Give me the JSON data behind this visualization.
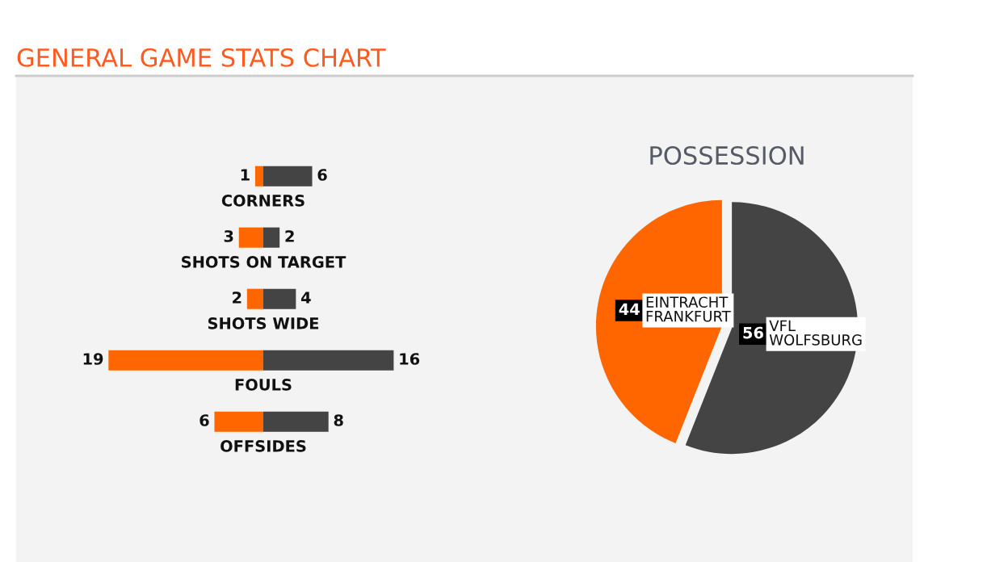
{
  "chart_data": [
    {
      "type": "bar",
      "orientation": "horizontal",
      "title": "GENERAL GAME STATS CHART",
      "categories": [
        "CORNERS",
        "SHOTS ON TARGET",
        "SHOTS WIDE",
        "FOULS",
        "OFFSIDES"
      ],
      "data_labels": true,
      "series": [
        {
          "color": "#ff6600",
          "values": [
            1,
            3,
            2,
            19,
            6
          ]
        }
      ]
    },
    {
      "type": "bar",
      "orientation": "horizontal",
      "categories": [
        null,
        null,
        null,
        null,
        null
      ],
      "data_labels": true,
      "series": [
        {
          "color": "#444444",
          "values": [
            6,
            2,
            4,
            16,
            8
          ]
        }
      ]
    },
    {
      "type": "pie",
      "title": "POSSESSION",
      "categories": [
        "EINTRACHT FRANKFURT",
        "VFL WOLFSBURG"
      ],
      "values": [
        44,
        56
      ],
      "colors": [
        "#ff6600",
        "#444444"
      ],
      "data_labels": true
    }
  ]
}
